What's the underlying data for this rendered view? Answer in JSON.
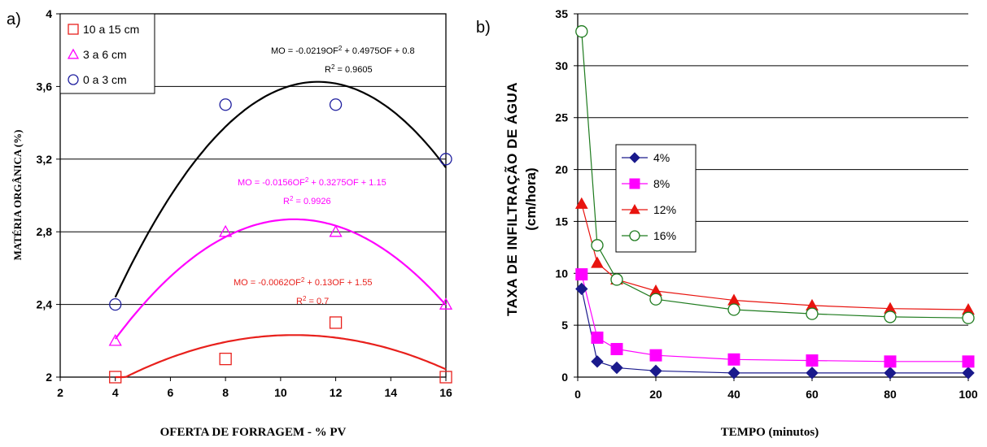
{
  "chart_data": [
    {
      "panel_label": "a)",
      "type": "scatter",
      "xlabel": "OFERTA DE FORRAGEM - % PV",
      "ylabel": "MATÉRIA ORGÂNICA (%)",
      "xlim": [
        2,
        16
      ],
      "ylim": [
        2,
        4
      ],
      "xticks": [
        "2",
        "4",
        "6",
        "8",
        "10",
        "12",
        "14",
        "16"
      ],
      "yticks": [
        "2",
        "2,4",
        "2,8",
        "3,2",
        "3,6",
        "4"
      ],
      "grid": "horizontal",
      "legend": "top-left",
      "series": [
        {
          "name": "10 a 15 cm",
          "color": "#e8201c",
          "marker": "square",
          "x": [
            4,
            8,
            12,
            16
          ],
          "y": [
            2.0,
            2.1,
            2.3,
            2.0
          ],
          "fit": {
            "a": -0.0062,
            "b": 0.13,
            "c": 1.55
          },
          "eq": "MO = -0.0062OF",
          "eq2": " + 0.13OF + 1.55",
          "r2_label": "R",
          "r2_value": " = 0.7"
        },
        {
          "name": "3 a 6 cm",
          "color": "#ff00ff",
          "marker": "triangle",
          "x": [
            4,
            8,
            12,
            16
          ],
          "y": [
            2.2,
            2.8,
            2.8,
            2.4
          ],
          "fit": {
            "a": -0.0156,
            "b": 0.3275,
            "c": 1.15
          },
          "eq": "MO = -0.0156OF",
          "eq2": " + 0.3275OF + 1.15",
          "r2_label": "R",
          "r2_value": " = 0.9926"
        },
        {
          "name": "0 a 3 cm",
          "color": "#1f1f9f",
          "marker": "circle",
          "x": [
            4,
            8,
            12,
            16
          ],
          "y": [
            2.4,
            3.5,
            3.5,
            3.2
          ],
          "fit": {
            "a": -0.0219,
            "b": 0.4975,
            "c": 0.8
          },
          "fit_color": "#000000",
          "eq": "MO = -0.0219OF",
          "eq2": " + 0.4975OF + 0.8",
          "r2_label": "R",
          "r2_value": " = 0.9605"
        }
      ]
    },
    {
      "panel_label": "b)",
      "type": "line",
      "xlabel": "TEMPO (minutos)",
      "ylabel_line1": "TAXA DE INFILTRAÇÃO DE ÁGUA",
      "ylabel_line2": "(cm/hora)",
      "xlim": [
        0,
        100
      ],
      "ylim": [
        0,
        35
      ],
      "xticks": [
        "0",
        "20",
        "40",
        "60",
        "80",
        "100"
      ],
      "yticks": [
        "0",
        "5",
        "10",
        "15",
        "20",
        "25",
        "30",
        "35"
      ],
      "grid": "horizontal",
      "legend": "top-left",
      "x": [
        1,
        5,
        10,
        20,
        40,
        60,
        80,
        100
      ],
      "series": [
        {
          "name": "4%",
          "color": "#1a1a8c",
          "marker": "diamond",
          "values": [
            8.5,
            1.5,
            0.9,
            0.6,
            0.4,
            0.4,
            0.4,
            0.4
          ]
        },
        {
          "name": "8%",
          "color": "#ff00ff",
          "marker": "square",
          "values": [
            9.9,
            3.8,
            2.7,
            2.1,
            1.7,
            1.6,
            1.5,
            1.5
          ]
        },
        {
          "name": "12%",
          "color": "#e8140f",
          "marker": "triangle",
          "values": [
            16.7,
            11.0,
            9.4,
            8.3,
            7.4,
            6.9,
            6.6,
            6.5
          ]
        },
        {
          "name": "16%",
          "color": "#1e7b1e",
          "marker": "circle-open",
          "values": [
            33.3,
            12.7,
            9.4,
            7.5,
            6.5,
            6.1,
            5.8,
            5.7
          ]
        }
      ]
    }
  ]
}
